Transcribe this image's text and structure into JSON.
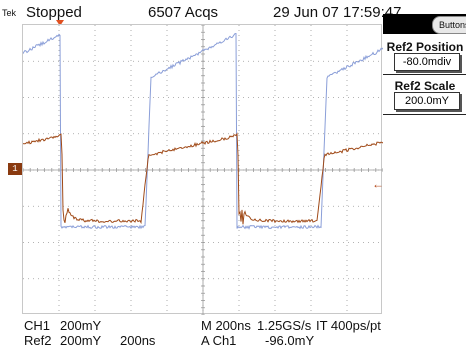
{
  "header": {
    "brand": "Tek",
    "status": "Stopped",
    "acquisitions": "6507 Acqs",
    "datetime": "29 Jun 07 17:59:47"
  },
  "menu": {
    "buttons_label": "Buttons",
    "ref2_position_title": "Ref2 Position",
    "ref2_position_value": "-80.0mdiv",
    "ref2_scale_title": "Ref2 Scale",
    "ref2_scale_value": "200.0mY"
  },
  "markers": {
    "ref_marker_label": "1",
    "trigger_level_arrow": "←"
  },
  "readouts": {
    "ch1": "CH1",
    "ch1_scale": "200mY",
    "ref2": "Ref2",
    "ref2_scale": "200mY",
    "ref2_time": "200ns",
    "timebase": "M 200ns",
    "sample_rate": "1.25GS/s",
    "interp": "IT 400ps/pt",
    "trigger": "A  Ch1",
    "trigger_level": "-96.0mY"
  },
  "colors": {
    "ch1_trace": "#8a9ed8",
    "ref2_trace": "#a04a18",
    "grid": "#9a9a9a"
  }
}
